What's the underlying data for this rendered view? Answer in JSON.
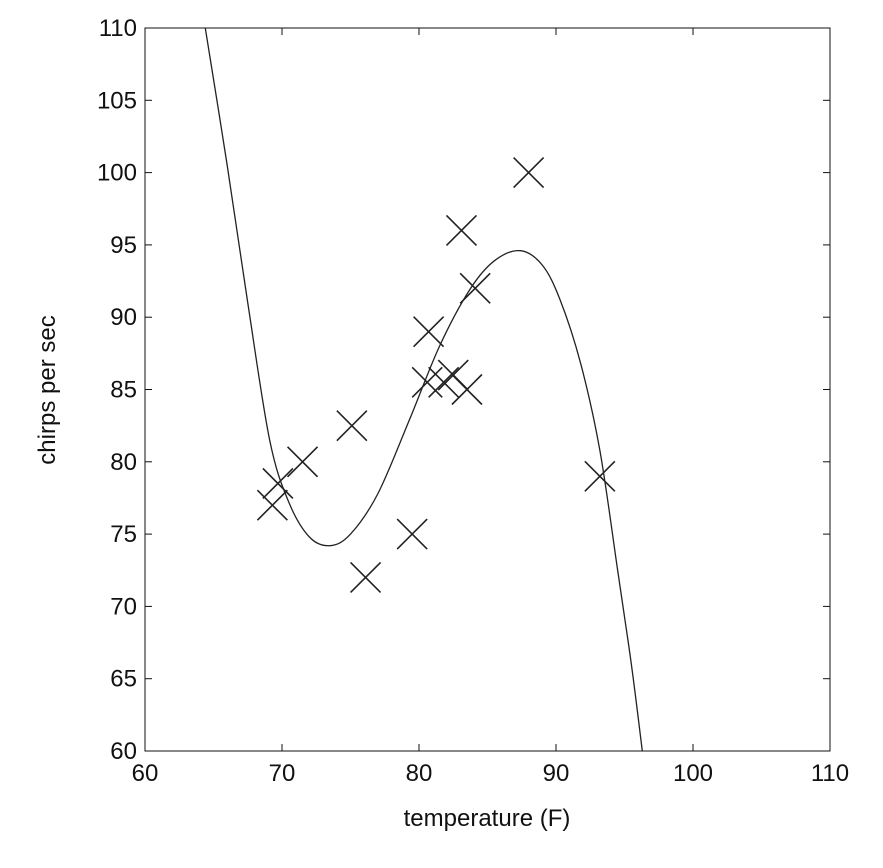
{
  "chart_data": {
    "type": "scatter",
    "title": "",
    "xlabel": "temperature (F)",
    "ylabel": "chirps per sec",
    "xlim": [
      60,
      110
    ],
    "ylim": [
      60,
      110
    ],
    "xticks": [
      "60",
      "70",
      "80",
      "90",
      "100",
      "110"
    ],
    "yticks": [
      "60",
      "65",
      "70",
      "75",
      "80",
      "85",
      "90",
      "95",
      "100",
      "105",
      "110"
    ],
    "grid": false,
    "marker": "x",
    "color": "#222222",
    "points": [
      {
        "x": 69.3,
        "y": 77.0
      },
      {
        "x": 69.7,
        "y": 78.5
      },
      {
        "x": 71.5,
        "y": 80.0
      },
      {
        "x": 75.1,
        "y": 82.5
      },
      {
        "x": 76.1,
        "y": 72.0
      },
      {
        "x": 79.5,
        "y": 75.0
      },
      {
        "x": 80.7,
        "y": 89.0
      },
      {
        "x": 80.6,
        "y": 85.5
      },
      {
        "x": 81.8,
        "y": 85.5
      },
      {
        "x": 82.5,
        "y": 86.0
      },
      {
        "x": 83.5,
        "y": 85.0
      },
      {
        "x": 83.1,
        "y": 96.0
      },
      {
        "x": 84.1,
        "y": 92.0
      },
      {
        "x": 88.0,
        "y": 100.0
      },
      {
        "x": 93.2,
        "y": 79.0
      }
    ],
    "fit_curve": [
      {
        "x": 64.4,
        "y": 110.0
      },
      {
        "x": 66.0,
        "y": 100.5
      },
      {
        "x": 67.5,
        "y": 91.0
      },
      {
        "x": 69.1,
        "y": 81.5
      },
      {
        "x": 70.5,
        "y": 77.2
      },
      {
        "x": 72.0,
        "y": 74.8
      },
      {
        "x": 73.5,
        "y": 74.2
      },
      {
        "x": 75.0,
        "y": 75.0
      },
      {
        "x": 77.0,
        "y": 77.8
      },
      {
        "x": 79.3,
        "y": 82.9
      },
      {
        "x": 81.5,
        "y": 88.0
      },
      {
        "x": 83.7,
        "y": 91.9
      },
      {
        "x": 85.5,
        "y": 93.9
      },
      {
        "x": 87.4,
        "y": 94.6
      },
      {
        "x": 89.0,
        "y": 93.6
      },
      {
        "x": 90.3,
        "y": 91.2
      },
      {
        "x": 91.8,
        "y": 86.8
      },
      {
        "x": 93.2,
        "y": 80.8
      },
      {
        "x": 94.5,
        "y": 72.5
      },
      {
        "x": 95.5,
        "y": 66.0
      },
      {
        "x": 96.3,
        "y": 60.0
      }
    ]
  }
}
